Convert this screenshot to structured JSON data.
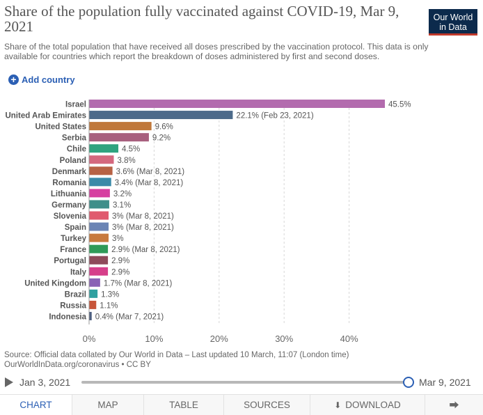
{
  "title": "Share of the population fully vaccinated against COVID-19, Mar 9, 2021",
  "subtitle": "Share of the total population that have received all doses prescribed by the vaccination protocol. This data is only available for countries which report the breakdown of doses administered by first and second doses.",
  "logo": {
    "line1": "Our World",
    "line2": "in Data"
  },
  "add_country": "Add country",
  "chart_data": {
    "type": "bar",
    "orientation": "horizontal",
    "categories": [
      "Israel",
      "United Arab Emirates",
      "United States",
      "Serbia",
      "Chile",
      "Poland",
      "Denmark",
      "Romania",
      "Lithuania",
      "Germany",
      "Slovenia",
      "Spain",
      "Turkey",
      "France",
      "Portugal",
      "Italy",
      "United Kingdom",
      "Brazil",
      "Russia",
      "Indonesia"
    ],
    "values": [
      45.5,
      22.1,
      9.6,
      9.2,
      4.5,
      3.8,
      3.6,
      3.4,
      3.2,
      3.1,
      3.0,
      3.0,
      3.0,
      2.9,
      2.9,
      2.9,
      1.7,
      1.3,
      1.1,
      0.4
    ],
    "labels": [
      "45.5%",
      "22.1% (Feb 23, 2021)",
      "9.6%",
      "9.2%",
      "4.5%",
      "3.8%",
      "3.6% (Mar 8, 2021)",
      "3.4% (Mar 8, 2021)",
      "3.2%",
      "3.1%",
      "3% (Mar 8, 2021)",
      "3% (Mar 8, 2021)",
      "3%",
      "2.9% (Mar 8, 2021)",
      "2.9%",
      "2.9%",
      "1.7% (Mar 8, 2021)",
      "1.3%",
      "1.1%",
      "0.4% (Mar 7, 2021)"
    ],
    "colors": [
      "#b36bae",
      "#4c6a8a",
      "#c0783a",
      "#a8607e",
      "#2fa37f",
      "#d4687e",
      "#b76244",
      "#3a8aa8",
      "#d63fa0",
      "#3f8f8a",
      "#e05a6e",
      "#6b84b5",
      "#c87a3e",
      "#2f9a58",
      "#8e4a5a",
      "#d63f8a",
      "#8a63b5",
      "#2fa0a0",
      "#c8553a",
      "#4d5f80"
    ],
    "xticks": [
      0,
      10,
      20,
      30,
      40
    ],
    "xtick_labels": [
      "0%",
      "10%",
      "20%",
      "30%",
      "40%"
    ],
    "xlim": [
      0,
      45.5
    ],
    "grid": true
  },
  "source": "Source: Official data collated by Our World in Data – Last updated 10 March, 11:07 (London time)",
  "source_line2": "OurWorldInData.org/coronavirus • CC BY",
  "timeline": {
    "start": "Jan 3, 2021",
    "end": "Mar 9, 2021"
  },
  "tabs": [
    {
      "label": "CHART"
    },
    {
      "label": "MAP"
    },
    {
      "label": "TABLE"
    },
    {
      "label": "SOURCES"
    },
    {
      "label": "DOWNLOAD"
    }
  ],
  "icons": {
    "play": "play-icon",
    "plus": "plus-circle-icon",
    "download": "download-icon",
    "share": "share-icon"
  }
}
